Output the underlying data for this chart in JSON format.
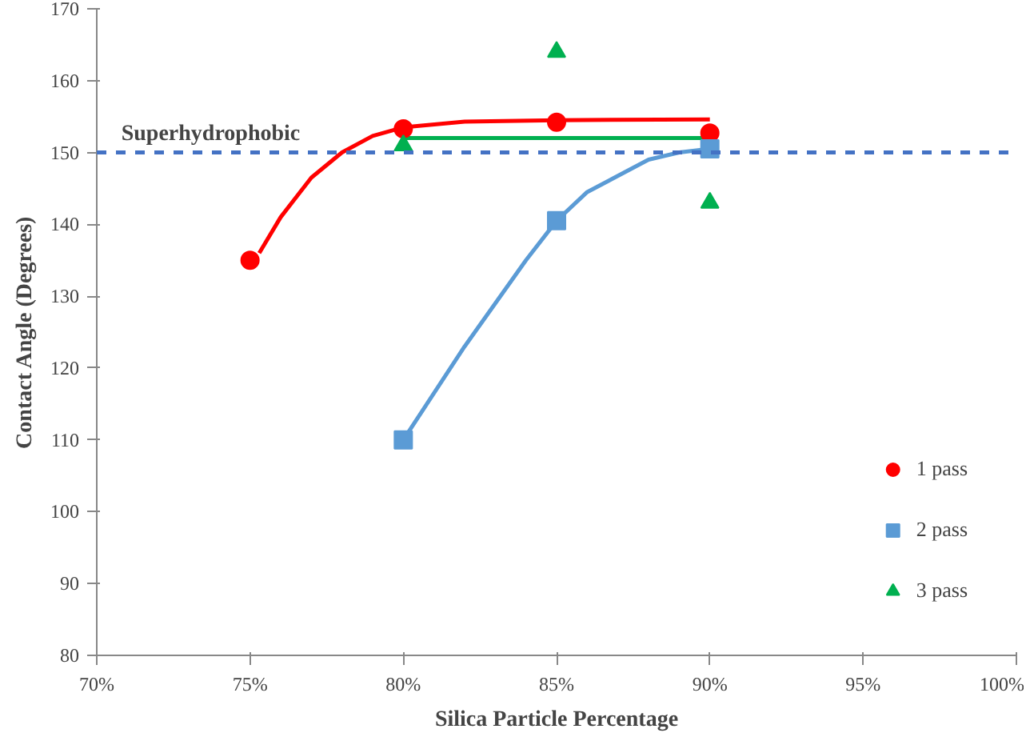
{
  "chart_data": {
    "type": "scatter",
    "xlabel": "Silica Particle Percentage",
    "ylabel": "Contact Angle (Degrees)",
    "xlim": [
      70,
      100
    ],
    "xticks": [
      {
        "value": 70,
        "label": "70%"
      },
      {
        "value": 75,
        "label": "75%"
      },
      {
        "value": 80,
        "label": "80%"
      },
      {
        "value": 85,
        "label": "85%"
      },
      {
        "value": 90,
        "label": "90%"
      },
      {
        "value": 95,
        "label": "95%"
      },
      {
        "value": 100,
        "label": "100%"
      }
    ],
    "ylim": [
      80,
      170
    ],
    "yticks": [
      80,
      90,
      100,
      110,
      120,
      130,
      140,
      150,
      160,
      170
    ],
    "grid": false,
    "legend": "bottom right",
    "ref_lines": [
      {
        "axis": "y",
        "value": 150,
        "label": "Superhydrophobic",
        "color": "#4472c4",
        "line_style": "dashed"
      }
    ],
    "series": [
      {
        "type": "line",
        "color": "#ff0000",
        "x": [
          75.3,
          76,
          77,
          78,
          79,
          80,
          82,
          85,
          90
        ],
        "values": [
          136,
          141,
          146.5,
          150,
          152.3,
          153.5,
          154.3,
          154.5,
          154.6
        ]
      },
      {
        "type": "line",
        "color": "#5b9bd5",
        "x": [
          80,
          82,
          84,
          85,
          86,
          88,
          89,
          90
        ],
        "values": [
          110,
          123,
          135,
          140.5,
          144.5,
          149,
          150,
          150.5
        ]
      },
      {
        "type": "line",
        "color": "#00b050",
        "x": [
          80,
          90
        ],
        "values": [
          152,
          152
        ]
      },
      {
        "name": "1 pass",
        "color": "#ff0000",
        "marker": "circle",
        "x": [
          75,
          80,
          85,
          90
        ],
        "values": [
          135,
          153.3,
          154.2,
          152.7
        ]
      },
      {
        "name": "2 pass",
        "color": "#5b9bd5",
        "marker": "square",
        "x": [
          80,
          85,
          90
        ],
        "values": [
          110,
          140.5,
          150.5
        ]
      },
      {
        "name": "3 pass",
        "color": "#00b050",
        "marker": "triangle",
        "x": [
          80,
          85,
          90
        ],
        "values": [
          151,
          164,
          143
        ]
      }
    ]
  }
}
